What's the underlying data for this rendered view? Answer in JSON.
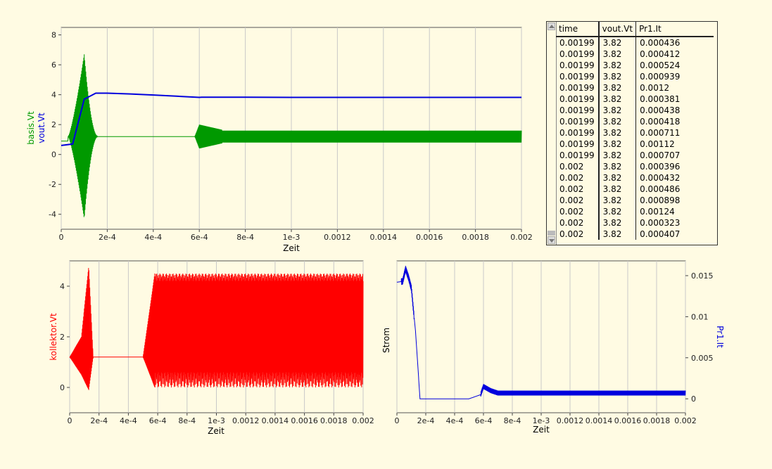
{
  "colors": {
    "green": "#009900",
    "blue": "#0000dd",
    "red": "#ff0000",
    "grid": "#c8c8c8"
  },
  "chart_data": [
    {
      "type": "line",
      "xlabel": "Zeit",
      "ylabels": [
        "basis.Vt",
        "vout.Vt"
      ],
      "xlim": [
        0,
        0.002
      ],
      "ylim": [
        -5,
        8.5
      ],
      "xticks": [
        "0",
        "2e-4",
        "4e-4",
        "6e-4",
        "8e-4",
        "1e-3",
        "0.0012",
        "0.0014",
        "0.0016",
        "0.0018",
        "0.002"
      ],
      "yticks": [
        "-4",
        "-2",
        "0",
        "2",
        "4",
        "6",
        "8"
      ],
      "series": [
        {
          "name": "basis.Vt",
          "color": "#009900",
          "description_points": {
            "x": [
              0,
              3e-05,
              0.0001,
              0.00015,
              0.0006,
              0.0007,
              0.002
            ],
            "y_center": [
              0.9,
              1.2,
              1.2,
              1.2,
              1.2,
              1.2,
              1.2
            ],
            "envelope_halfwidth": [
              0.3,
              1.5,
              5.5,
              0.1,
              0,
              0.8,
              0.4
            ]
          }
        },
        {
          "name": "vout.Vt",
          "color": "#0000dd",
          "x": [
            0,
            5e-05,
            0.0001,
            0.00015,
            0.0002,
            0.0003,
            0.0004,
            0.0005,
            0.0006,
            0.00061,
            0.0008,
            0.001,
            0.0015,
            0.002
          ],
          "y": [
            0.6,
            0.7,
            3.7,
            4.1,
            4.1,
            4.05,
            3.98,
            3.9,
            3.82,
            3.83,
            3.83,
            3.82,
            3.82,
            3.82
          ]
        }
      ]
    },
    {
      "type": "line",
      "xlabel": "Zeit",
      "ylabel": "kollektor.Vt",
      "xlim": [
        0,
        0.002
      ],
      "ylim": [
        -1,
        5
      ],
      "xticks": [
        "0",
        "2e-4",
        "4e-4",
        "6e-4",
        "8e-4",
        "1e-3",
        "0.0012",
        "0.0014",
        "0.0016",
        "0.0018",
        "0.002"
      ],
      "yticks": [
        "0",
        "2",
        "4"
      ],
      "series": [
        {
          "name": "kollektor.Vt",
          "color": "#ff0000",
          "x": [
            0,
            8e-05,
            0.00013,
            0.00016,
            0.0005,
            0.00058,
            0.002
          ],
          "y_center": [
            1.2,
            1.2,
            2.5,
            1.2,
            1.2,
            2.2,
            2.2
          ],
          "envelope_min": [
            1.2,
            0.5,
            -0.1,
            1.2,
            1.2,
            0,
            0
          ],
          "envelope_max": [
            1.2,
            2,
            4.8,
            1.2,
            1.2,
            4.5,
            4.5
          ]
        }
      ]
    },
    {
      "type": "line",
      "xlabel": "Zeit",
      "ylabel_left": "Strom",
      "ylabel_right": "Pr1.It",
      "xlim": [
        0,
        0.002
      ],
      "ylim": [
        -0.0017,
        0.0168
      ],
      "xticks": [
        "0",
        "2e-4",
        "4e-4",
        "6e-4",
        "8e-4",
        "1e-3",
        "0.0012",
        "0.0014",
        "0.0016",
        "0.0018",
        "0.002"
      ],
      "yticks": [
        "0",
        "0.005",
        "0.01",
        "0.015"
      ],
      "series": [
        {
          "name": "Pr1.It",
          "color": "#0000dd",
          "x": [
            0,
            4e-05,
            6e-05,
            8e-05,
            0.0001,
            0.00013,
            0.00016,
            0.0002,
            0.0005,
            0.00058,
            0.0006,
            0.00065,
            0.0007,
            0.002
          ],
          "y": [
            0.0142,
            0.0143,
            0.0158,
            0.0148,
            0.0135,
            0.008,
            0.0,
            0.0,
            0.0,
            0.0005,
            0.0015,
            0.001,
            0.0007,
            0.0007
          ]
        }
      ]
    }
  ],
  "table": {
    "headers": [
      "time",
      "vout.Vt",
      "Pr1.It"
    ],
    "rows": [
      [
        "0.00199",
        "3.82",
        "0.000436"
      ],
      [
        "0.00199",
        "3.82",
        "0.000412"
      ],
      [
        "0.00199",
        "3.82",
        "0.000524"
      ],
      [
        "0.00199",
        "3.82",
        "0.000939"
      ],
      [
        "0.00199",
        "3.82",
        "0.0012"
      ],
      [
        "0.00199",
        "3.82",
        "0.000381"
      ],
      [
        "0.00199",
        "3.82",
        "0.000438"
      ],
      [
        "0.00199",
        "3.82",
        "0.000418"
      ],
      [
        "0.00199",
        "3.82",
        "0.000711"
      ],
      [
        "0.00199",
        "3.82",
        "0.00112"
      ],
      [
        "0.00199",
        "3.82",
        "0.000707"
      ],
      [
        "0.002",
        "3.82",
        "0.000396"
      ],
      [
        "0.002",
        "3.82",
        "0.000432"
      ],
      [
        "0.002",
        "3.82",
        "0.000486"
      ],
      [
        "0.002",
        "3.82",
        "0.000898"
      ],
      [
        "0.002",
        "3.82",
        "0.00124"
      ],
      [
        "0.002",
        "3.82",
        "0.000323"
      ],
      [
        "0.002",
        "3.82",
        "0.000407"
      ]
    ]
  }
}
